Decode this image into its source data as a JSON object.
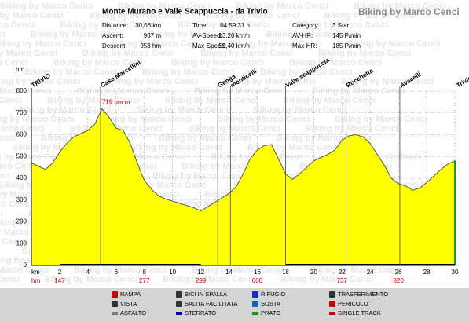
{
  "header": {
    "title": "Monte Murano e Valle Scappuccia - da Trivio",
    "watermark": "Biking by Marco Cenci",
    "stats": [
      [
        "Distance:",
        "30,06 km",
        "Time:",
        "04:59:31 h",
        "Category:",
        "3 Star"
      ],
      [
        "Ascent:",
        "987 m",
        "AV-Speed:",
        "13,20 km/h",
        "AV-HR:",
        "145 P/min"
      ],
      [
        "Descent:",
        "953 hm",
        "Max-Speed:",
        "59,40 km/h",
        "Max-HR:",
        "185 P/min"
      ]
    ]
  },
  "chart_data": {
    "type": "area",
    "y_label": "hm",
    "x_label": "km",
    "color": "#ffff00",
    "line_color": "#555555",
    "grid": true,
    "xlim": [
      0,
      30
    ],
    "ylim": [
      0,
      800
    ],
    "xticks": [
      2,
      4,
      6,
      8,
      10,
      12,
      14,
      16,
      18,
      20,
      22,
      24,
      26,
      28,
      30
    ],
    "yticks": [
      0,
      100,
      200,
      300,
      400,
      500,
      600,
      700,
      800
    ],
    "x": [
      0,
      0.5,
      1,
      1.5,
      2,
      2.5,
      3,
      3.5,
      4,
      4.5,
      5,
      5.5,
      6,
      6.5,
      7,
      7.5,
      8,
      8.5,
      9,
      9.5,
      10,
      10.5,
      11,
      11.5,
      12,
      12.5,
      13,
      13.5,
      14,
      14.5,
      15,
      15.5,
      16,
      16.5,
      17,
      17.5,
      18,
      18.5,
      19,
      19.5,
      20,
      20.5,
      21,
      21.5,
      22,
      22.5,
      23,
      23.5,
      24,
      24.5,
      25,
      25.5,
      26,
      26.5,
      27,
      27.5,
      28,
      28.5,
      29,
      29.5,
      30
    ],
    "values": [
      470,
      455,
      440,
      470,
      520,
      560,
      590,
      605,
      620,
      650,
      719,
      680,
      630,
      620,
      560,
      470,
      390,
      350,
      320,
      305,
      295,
      285,
      275,
      265,
      250,
      270,
      290,
      310,
      330,
      360,
      420,
      490,
      530,
      550,
      555,
      490,
      420,
      395,
      420,
      450,
      480,
      495,
      510,
      530,
      575,
      595,
      600,
      590,
      560,
      510,
      460,
      400,
      375,
      365,
      345,
      355,
      380,
      410,
      440,
      465,
      480
    ],
    "annotations": [
      {
        "x": 5,
        "y": 719,
        "label": "719 hm m"
      }
    ],
    "waypoints": [
      {
        "x": 0,
        "label": "TRIVIO"
      },
      {
        "x": 4.9,
        "label": "Case Marcellini"
      },
      {
        "x": 13.2,
        "label": "Genga"
      },
      {
        "x": 14.1,
        "label": "monticelli"
      },
      {
        "x": 18,
        "label": "Valle scappuccia"
      },
      {
        "x": 22.3,
        "label": "Rocchetta"
      },
      {
        "x": 26.1,
        "label": "Avacelli"
      },
      {
        "x": 30,
        "label": "Trivio"
      }
    ],
    "ascent_label": "hm",
    "ascent": {
      "x": [
        2,
        8,
        12,
        16,
        22,
        26
      ],
      "values": [
        147,
        277,
        299,
        600,
        737,
        820
      ]
    }
  },
  "legend": [
    {
      "label": "RAMPA",
      "color": "#cc0000"
    },
    {
      "label": "BICI IN SPALLA",
      "color": "#333333"
    },
    {
      "label": "RIFUGIO",
      "color": "#0033cc"
    },
    {
      "label": "TRASFERIMENTO",
      "color": "#333333"
    },
    {
      "label": "VISTA",
      "color": "#333333"
    },
    {
      "label": "SALITA FACILITATA",
      "color": "#333333"
    },
    {
      "label": "SOSTA",
      "color": "#0066cc"
    },
    {
      "label": "PERICOLO",
      "color": "#cc0000"
    },
    {
      "label": "ASFALTO",
      "color": "#777777"
    },
    {
      "label": "STERRATO",
      "color": "#0000cc"
    },
    {
      "label": "PRATO",
      "color": "#009900"
    },
    {
      "label": "SINGLE TRACK",
      "color": "#cc0000"
    }
  ]
}
